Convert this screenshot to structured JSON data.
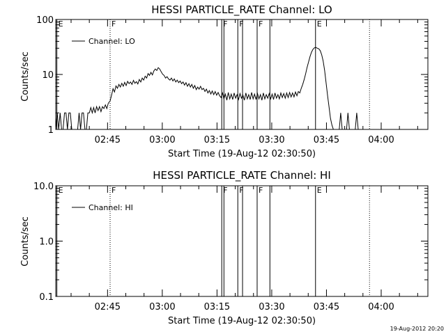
{
  "footer_timestamp": "19-Aug-2012 20:20",
  "chart_data": [
    {
      "type": "line",
      "title": "HESSI PARTICLE_RATE Channel: LO",
      "xlabel": "Start Time (19-Aug-12 02:30:50)",
      "ylabel": "Counts/sec",
      "yscale": "log",
      "ylim": [
        1,
        100
      ],
      "ytick_labels": [
        "1",
        "10",
        "100"
      ],
      "xlim_minutes": [
        0,
        102
      ],
      "xtick_labels": [
        "02:45",
        "03:00",
        "03:15",
        "03:30",
        "03:45",
        "04:00"
      ],
      "xtick_minutes": [
        14.2,
        29.2,
        44.2,
        59.2,
        74.2,
        89.2
      ],
      "legend": "Channel: LO",
      "legend_position": "top-left",
      "markers": [
        {
          "label": "E",
          "minute": 0.3,
          "style": "solid"
        },
        {
          "label": "F",
          "minute": 14.9,
          "style": "dotted"
        },
        {
          "label": "F",
          "minute": 45.5,
          "style": "solid"
        },
        {
          "label": "",
          "minute": 46.1,
          "style": "solid"
        },
        {
          "label": "F",
          "minute": 49.9,
          "style": "solid"
        },
        {
          "label": "",
          "minute": 51.2,
          "style": "solid"
        },
        {
          "label": "F",
          "minute": 55.2,
          "style": "solid"
        },
        {
          "label": "",
          "minute": 58.7,
          "style": "solid"
        },
        {
          "label": "E",
          "minute": 71.2,
          "style": "solid"
        },
        {
          "label": "",
          "minute": 86.0,
          "style": "dotted"
        }
      ],
      "series": [
        {
          "values": [
            [
              0.0,
              1
            ],
            [
              0.4,
              2
            ],
            [
              0.8,
              1
            ],
            [
              1.2,
              2
            ],
            [
              1.6,
              1
            ],
            [
              2.0,
              1
            ],
            [
              2.4,
              2
            ],
            [
              2.8,
              2
            ],
            [
              3.2,
              1
            ],
            [
              3.6,
              2
            ],
            [
              4.0,
              2
            ],
            [
              4.4,
              1
            ],
            [
              4.8,
              1
            ],
            [
              5.2,
              1
            ],
            [
              5.6,
              1
            ],
            [
              6.0,
              1
            ],
            [
              6.4,
              2
            ],
            [
              6.8,
              1
            ],
            [
              7.2,
              2
            ],
            [
              7.6,
              2
            ],
            [
              8.0,
              1
            ],
            [
              8.4,
              1
            ],
            [
              8.8,
              2
            ],
            [
              9.2,
              2
            ],
            [
              9.6,
              2.5
            ],
            [
              10.0,
              2
            ],
            [
              10.4,
              2.5
            ],
            [
              10.8,
              2
            ],
            [
              11.2,
              2.6
            ],
            [
              11.6,
              2.2
            ],
            [
              12.0,
              2.6
            ],
            [
              12.4,
              2.1
            ],
            [
              12.8,
              2.6
            ],
            [
              13.2,
              2.4
            ],
            [
              13.6,
              2.8
            ],
            [
              14.0,
              2.4
            ],
            [
              14.4,
              3.0
            ],
            [
              14.9,
              3.3
            ],
            [
              15.3,
              4.2
            ],
            [
              15.7,
              5.5
            ],
            [
              16.1,
              4.8
            ],
            [
              16.5,
              6.2
            ],
            [
              16.9,
              5.6
            ],
            [
              17.3,
              6.6
            ],
            [
              17.7,
              5.9
            ],
            [
              18.1,
              6.9
            ],
            [
              18.5,
              6.1
            ],
            [
              18.9,
              7.2
            ],
            [
              19.3,
              6.3
            ],
            [
              19.7,
              7.5
            ],
            [
              20.1,
              6.8
            ],
            [
              20.5,
              7.3
            ],
            [
              20.9,
              6.6
            ],
            [
              21.3,
              7.8
            ],
            [
              21.7,
              6.9
            ],
            [
              22.1,
              7.4
            ],
            [
              22.5,
              6.7
            ],
            [
              22.9,
              8.1
            ],
            [
              23.3,
              7.3
            ],
            [
              23.7,
              8.6
            ],
            [
              24.1,
              7.9
            ],
            [
              24.5,
              9.3
            ],
            [
              24.9,
              8.6
            ],
            [
              25.3,
              10.4
            ],
            [
              25.7,
              9.6
            ],
            [
              26.1,
              10.9
            ],
            [
              26.5,
              9.8
            ],
            [
              26.9,
              11.6
            ],
            [
              27.3,
              12.6
            ],
            [
              27.7,
              11.8
            ],
            [
              28.1,
              13.3
            ],
            [
              28.5,
              12.5
            ],
            [
              28.9,
              11.2
            ],
            [
              29.3,
              10.1
            ],
            [
              29.7,
              9.6
            ],
            [
              30.1,
              8.6
            ],
            [
              30.5,
              9.1
            ],
            [
              30.9,
              8.3
            ],
            [
              31.3,
              7.9
            ],
            [
              31.7,
              8.6
            ],
            [
              32.1,
              7.6
            ],
            [
              32.5,
              8.3
            ],
            [
              32.9,
              7.3
            ],
            [
              33.3,
              7.9
            ],
            [
              33.7,
              7.1
            ],
            [
              34.1,
              7.6
            ],
            [
              34.5,
              6.8
            ],
            [
              34.9,
              7.3
            ],
            [
              35.3,
              6.4
            ],
            [
              35.7,
              7.1
            ],
            [
              36.1,
              6.1
            ],
            [
              36.5,
              6.8
            ],
            [
              36.9,
              5.9
            ],
            [
              37.3,
              6.6
            ],
            [
              37.7,
              5.6
            ],
            [
              38.1,
              6.3
            ],
            [
              38.5,
              5.3
            ],
            [
              38.9,
              5.9
            ],
            [
              39.3,
              5.4
            ],
            [
              39.7,
              6.1
            ],
            [
              40.1,
              5.3
            ],
            [
              40.5,
              5.6
            ],
            [
              40.9,
              4.9
            ],
            [
              41.3,
              5.4
            ],
            [
              41.7,
              4.6
            ],
            [
              42.1,
              5.1
            ],
            [
              42.5,
              4.4
            ],
            [
              42.9,
              5.0
            ],
            [
              43.3,
              4.3
            ],
            [
              43.7,
              4.9
            ],
            [
              44.1,
              4.2
            ],
            [
              44.5,
              4.7
            ],
            [
              44.9,
              4.1
            ],
            [
              45.3,
              3.8
            ],
            [
              45.7,
              4.6
            ],
            [
              46.1,
              3.6
            ],
            [
              46.5,
              4.4
            ],
            [
              46.9,
              3.4
            ],
            [
              47.3,
              4.7
            ],
            [
              47.7,
              3.6
            ],
            [
              48.1,
              4.4
            ],
            [
              48.5,
              3.5
            ],
            [
              48.9,
              4.6
            ],
            [
              49.3,
              3.7
            ],
            [
              49.7,
              4.3
            ],
            [
              50.1,
              3.5
            ],
            [
              50.5,
              4.5
            ],
            [
              50.9,
              3.7
            ],
            [
              51.3,
              4.2
            ],
            [
              51.7,
              3.4
            ],
            [
              52.1,
              4.6
            ],
            [
              52.5,
              3.6
            ],
            [
              52.9,
              4.3
            ],
            [
              53.3,
              3.5
            ],
            [
              53.7,
              4.7
            ],
            [
              54.1,
              3.6
            ],
            [
              54.5,
              4.4
            ],
            [
              54.9,
              3.5
            ],
            [
              55.3,
              4.5
            ],
            [
              55.7,
              3.6
            ],
            [
              56.1,
              4.3
            ],
            [
              56.5,
              3.4
            ],
            [
              56.9,
              4.6
            ],
            [
              57.3,
              3.6
            ],
            [
              57.7,
              4.3
            ],
            [
              58.1,
              3.7
            ],
            [
              58.5,
              4.5
            ],
            [
              58.9,
              3.6
            ],
            [
              59.3,
              4.4
            ],
            [
              59.7,
              3.5
            ],
            [
              60.1,
              4.6
            ],
            [
              60.5,
              3.7
            ],
            [
              60.9,
              4.3
            ],
            [
              61.3,
              3.6
            ],
            [
              61.7,
              4.6
            ],
            [
              62.1,
              3.8
            ],
            [
              62.5,
              4.5
            ],
            [
              62.9,
              3.7
            ],
            [
              63.3,
              4.6
            ],
            [
              63.7,
              3.8
            ],
            [
              64.1,
              4.7
            ],
            [
              64.5,
              3.9
            ],
            [
              64.9,
              4.6
            ],
            [
              65.3,
              3.9
            ],
            [
              65.7,
              4.8
            ],
            [
              66.1,
              4.1
            ],
            [
              66.5,
              4.9
            ],
            [
              66.9,
              4.6
            ],
            [
              67.3,
              5.6
            ],
            [
              67.7,
              6.6
            ],
            [
              68.1,
              8.1
            ],
            [
              68.5,
              10.3
            ],
            [
              68.9,
              13.5
            ],
            [
              69.3,
              16.9
            ],
            [
              69.7,
              21.2
            ],
            [
              70.1,
              25.4
            ],
            [
              70.5,
              28.6
            ],
            [
              70.9,
              30.5
            ],
            [
              71.3,
              31.0
            ],
            [
              71.7,
              30.0
            ],
            [
              72.1,
              29.2
            ],
            [
              72.5,
              27.0
            ],
            [
              72.9,
              22.6
            ],
            [
              73.3,
              17.6
            ],
            [
              73.7,
              11.9
            ],
            [
              74.1,
              7.1
            ],
            [
              74.5,
              4.2
            ],
            [
              74.9,
              2.6
            ],
            [
              75.3,
              1.6
            ],
            [
              75.7,
              1.2
            ],
            [
              76.1,
              1.0
            ],
            [
              76.5,
              1.0
            ],
            [
              77.7,
              1.0
            ],
            [
              78.1,
              2.0
            ],
            [
              78.5,
              1.0
            ],
            [
              79.7,
              1.0
            ],
            [
              80.1,
              2.0
            ],
            [
              80.5,
              1.0
            ],
            [
              81.7,
              1.0
            ],
            [
              82.1,
              1.0
            ],
            [
              82.5,
              2.0
            ],
            [
              82.9,
              1.0
            ]
          ]
        }
      ]
    },
    {
      "type": "line",
      "title": "HESSI PARTICLE_RATE Channel: HI",
      "xlabel": "Start Time (19-Aug-12 02:30:50)",
      "ylabel": "Counts/sec",
      "yscale": "log",
      "ylim": [
        0.1,
        10
      ],
      "ytick_labels": [
        "0.1",
        "1.0",
        "10.0"
      ],
      "xlim_minutes": [
        0,
        102
      ],
      "xtick_labels": [
        "02:45",
        "03:00",
        "03:15",
        "03:30",
        "03:45",
        "04:00"
      ],
      "xtick_minutes": [
        14.2,
        29.2,
        44.2,
        59.2,
        74.2,
        89.2
      ],
      "legend": "Channel: HI",
      "legend_position": "top-left",
      "markers": [
        {
          "label": "E",
          "minute": 0.3,
          "style": "solid"
        },
        {
          "label": "F",
          "minute": 14.9,
          "style": "dotted"
        },
        {
          "label": "F",
          "minute": 45.5,
          "style": "solid"
        },
        {
          "label": "",
          "minute": 46.1,
          "style": "solid"
        },
        {
          "label": "F",
          "minute": 49.9,
          "style": "solid"
        },
        {
          "label": "",
          "minute": 51.2,
          "style": "solid"
        },
        {
          "label": "F",
          "minute": 55.2,
          "style": "solid"
        },
        {
          "label": "",
          "minute": 58.7,
          "style": "solid"
        },
        {
          "label": "E",
          "minute": 71.2,
          "style": "solid"
        },
        {
          "label": "",
          "minute": 86.0,
          "style": "dotted"
        }
      ],
      "series": [
        {
          "values": []
        }
      ]
    }
  ]
}
